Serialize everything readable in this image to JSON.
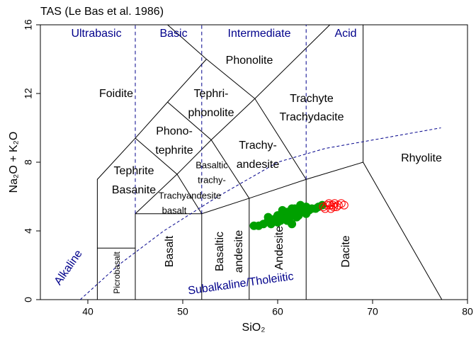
{
  "chart_data": {
    "type": "scatter",
    "title": "TAS (Le Bas et al. 1986)",
    "x_label": "SiO₂",
    "y_label": "Na₂O + K₂O",
    "xlim": [
      35,
      80
    ],
    "ylim": [
      0,
      16
    ],
    "xticks": [
      40,
      50,
      60,
      70,
      80
    ],
    "yticks": [
      0,
      4,
      8,
      12,
      16
    ],
    "boundaries": [
      {
        "x": [
          41,
          41,
          45,
          48.4,
          52.5,
          48.4
        ],
        "y": [
          0,
          7,
          9.4,
          11.5,
          14,
          16
        ]
      },
      {
        "x": [
          41,
          45
        ],
        "y": [
          3,
          3
        ]
      },
      {
        "x": [
          45,
          45,
          52,
          57,
          63,
          69,
          77.3
        ],
        "y": [
          0,
          5,
          5,
          5.9,
          7,
          8,
          0
        ]
      },
      {
        "x": [
          52,
          52
        ],
        "y": [
          0,
          5
        ]
      },
      {
        "x": [
          57,
          57
        ],
        "y": [
          0,
          5.9
        ]
      },
      {
        "x": [
          63,
          63
        ],
        "y": [
          0,
          7
        ]
      },
      {
        "x": [
          69,
          69
        ],
        "y": [
          8,
          16
        ]
      },
      {
        "x": [
          45,
          49.4,
          53,
          57.6,
          65.5
        ],
        "y": [
          5,
          7.3,
          9.3,
          11.7,
          16
        ]
      },
      {
        "x": [
          45,
          49.4,
          52
        ],
        "y": [
          9.4,
          7.3,
          5
        ]
      },
      {
        "x": [
          48.4,
          53,
          57
        ],
        "y": [
          11.5,
          9.3,
          5.9
        ]
      },
      {
        "x": [
          52.5,
          57.6,
          63
        ],
        "y": [
          14,
          11.7,
          7
        ]
      }
    ],
    "dividers": [
      {
        "x": [
          45,
          45
        ],
        "y": [
          5,
          16
        ]
      },
      {
        "x": [
          52,
          52
        ],
        "y": [
          5,
          16
        ]
      },
      {
        "x": [
          63,
          63
        ],
        "y": [
          7,
          16
        ]
      }
    ],
    "alkaline_line": {
      "x": [
        39.2,
        43.2,
        48,
        53.7,
        60,
        65,
        77.2
      ],
      "y": [
        0,
        2,
        4,
        6,
        8,
        8.8,
        10
      ],
      "color": "#00008b"
    },
    "labels": [
      "Ultrabasic",
      "Basic",
      "Intermediate",
      "Acid",
      "Phonolite",
      "Foidite",
      "Tephri-",
      "phonolite",
      "Trachyte",
      "Trachydacite",
      "Phono-",
      "tephrite",
      "Trachy-",
      "andesite",
      "Tephrite",
      "Basanite",
      "Rhyolite",
      "Basaltic",
      "trachy-",
      "Trachyandesite",
      "basalt",
      "Picrobasalt",
      "Basalt",
      "Basaltic",
      "andesite",
      "Andesite",
      "Dacite",
      "Alkaline",
      "Subalkaline/Tholeiitic"
    ],
    "series": [
      {
        "color": "#00a000",
        "filled": true,
        "x": [
          57.5,
          58,
          58.5,
          59,
          59.3,
          59.7,
          60,
          60.3,
          60.5,
          60.8,
          61,
          61.2,
          61.5,
          61.7,
          62,
          62.2,
          62.5,
          62.8,
          63,
          63.3,
          63.6,
          64,
          64.3,
          60,
          59,
          61,
          62,
          63,
          61.5,
          60.5,
          61.8,
          64.7,
          62.4
        ],
        "values": [
          4.3,
          4.3,
          4.4,
          4.6,
          4.4,
          4.7,
          4.9,
          4.6,
          5.0,
          4.8,
          5.1,
          4.7,
          5.3,
          5.0,
          5.2,
          4.9,
          5.3,
          5.1,
          5.4,
          5.2,
          5.3,
          5.3,
          5.4,
          4.5,
          4.8,
          4.6,
          4.8,
          5.0,
          4.4,
          5.2,
          5.3,
          5.5,
          5.5
        ]
      },
      {
        "color": "#ff0000",
        "filled": false,
        "x": [
          64.8,
          65,
          65.2,
          65.4,
          65.6,
          65.8,
          66,
          66.2,
          66.4,
          66.7,
          67,
          65.5,
          65.9
        ],
        "values": [
          5.4,
          5.3,
          5.5,
          5.6,
          5.3,
          5.5,
          5.6,
          5.4,
          5.5,
          5.6,
          5.5,
          5.5,
          5.4
        ]
      }
    ]
  }
}
